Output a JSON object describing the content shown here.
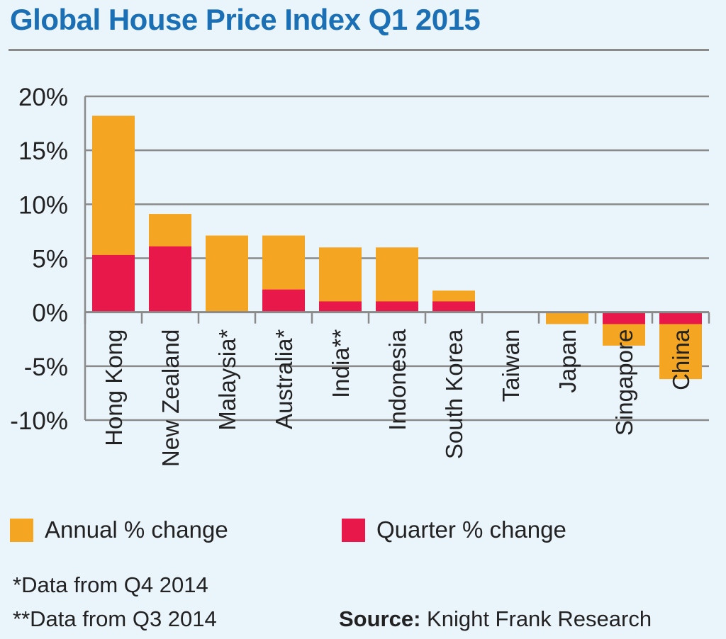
{
  "title": "Global House Price Index Q1 2015",
  "colors": {
    "annual": "#f4a623",
    "quarter": "#e8194a",
    "grid": "#8a8a8a"
  },
  "legend": {
    "annual": "Annual % change",
    "quarter": "Quarter % change"
  },
  "notes": {
    "q4": "*Data from Q4 2014",
    "q3": "**Data from Q3 2014"
  },
  "source": {
    "label": "Source:",
    "text": "Knight Frank Research"
  },
  "chart_data": {
    "type": "bar",
    "title": "Global House Price Index Q1 2015",
    "categories": [
      "Hong Kong",
      "New Zealand",
      "Malaysia*",
      "Australia*",
      "India**",
      "Indonesia",
      "South Korea",
      "Taiwan",
      "Japan",
      "Singapore",
      "China"
    ],
    "series": [
      {
        "name": "Annual % change",
        "values": [
          18.2,
          9.1,
          7.1,
          7.1,
          6.0,
          6.0,
          2.0,
          0.0,
          -1.1,
          -3.1,
          -6.2
        ]
      },
      {
        "name": "Quarter % change",
        "values": [
          5.3,
          6.1,
          0.0,
          2.1,
          1.0,
          1.0,
          1.0,
          0.0,
          0.0,
          -1.1,
          -1.1
        ]
      }
    ],
    "ylim": [
      -10,
      20
    ],
    "yticks": [
      20,
      15,
      10,
      5,
      0,
      -5,
      -10
    ],
    "ytick_labels": [
      "20%",
      "15%",
      "10%",
      "5%",
      "0%",
      "-5%",
      "-10%"
    ],
    "xlabel": "",
    "ylabel": "",
    "grid": true,
    "legend_position": "bottom"
  }
}
